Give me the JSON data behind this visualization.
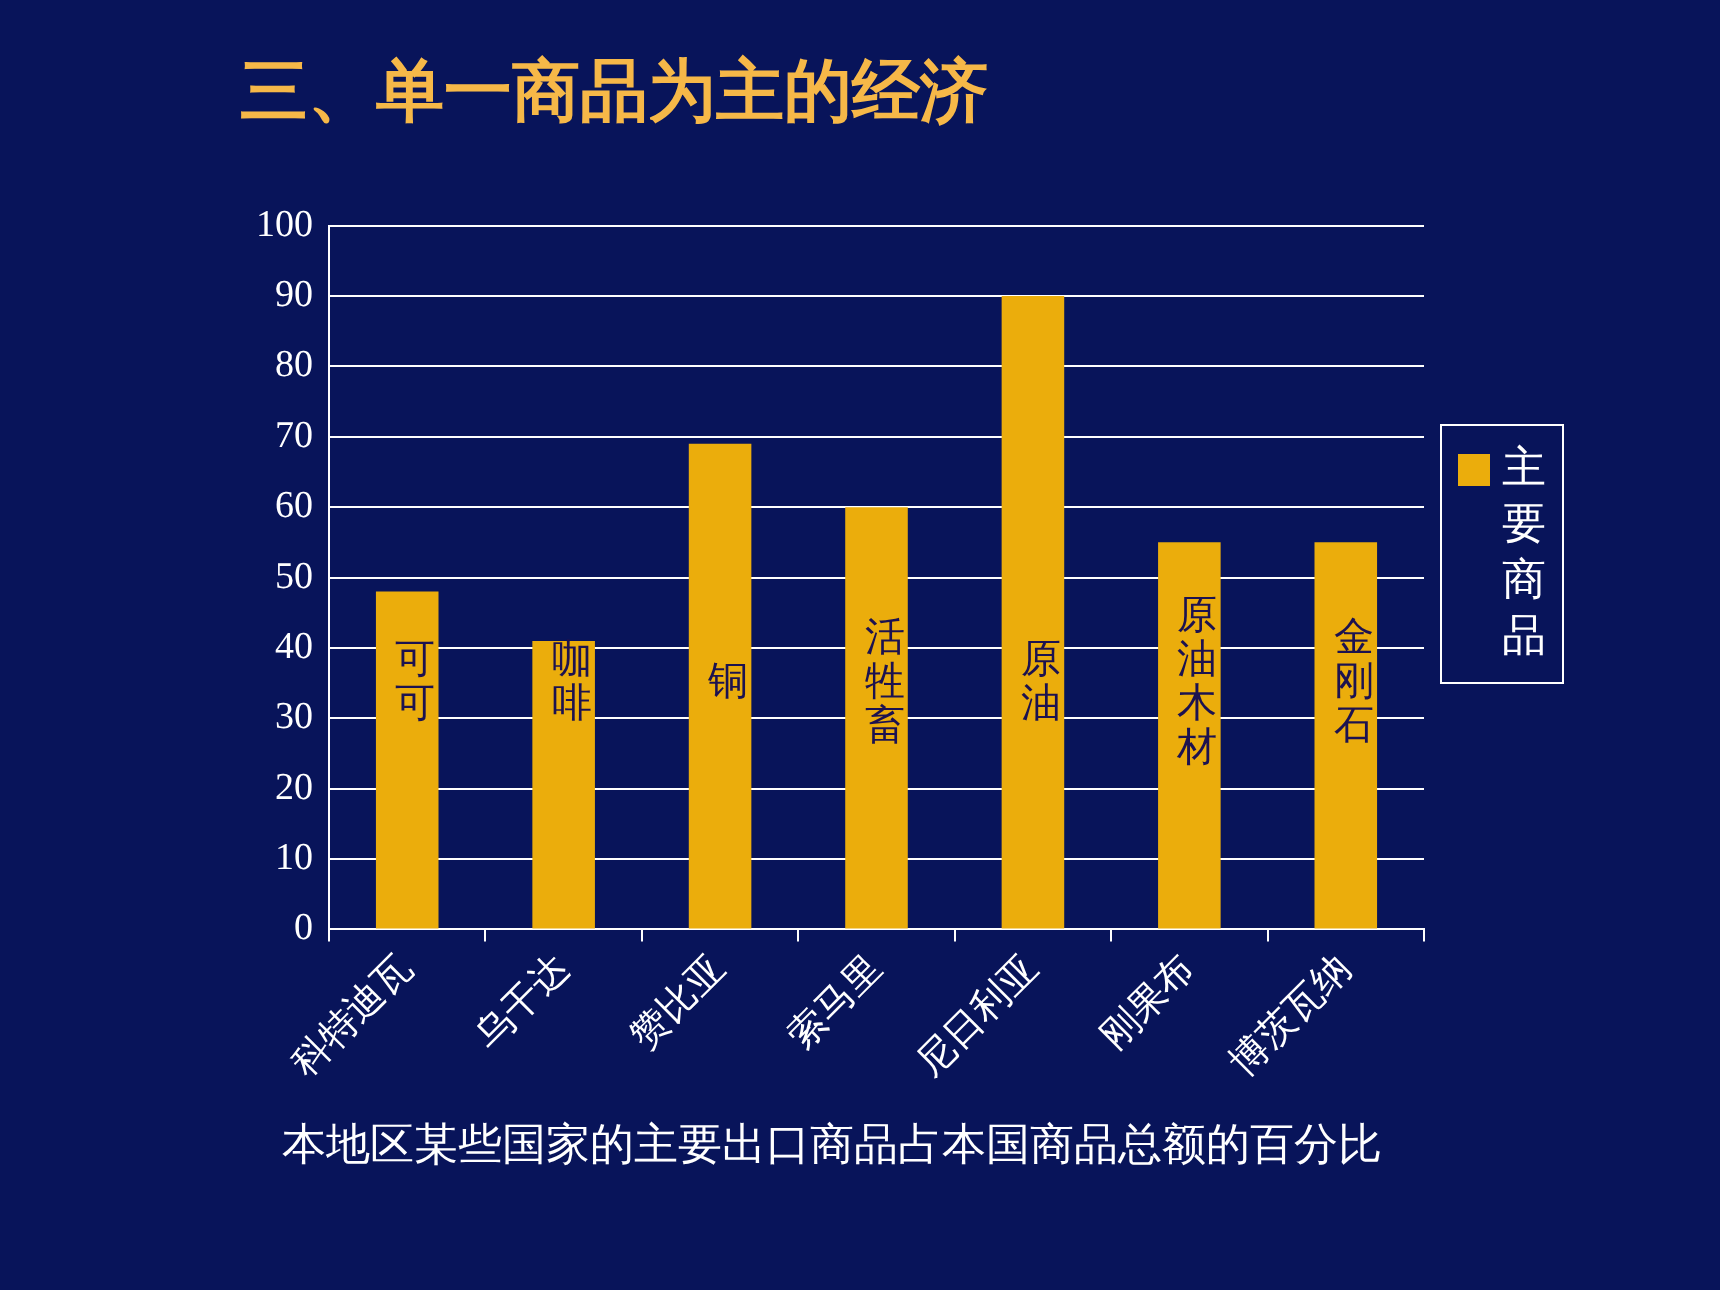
{
  "chart_data": {
    "type": "bar",
    "title": "三、单一商品为主的经济",
    "categories": [
      "科特迪瓦",
      "乌干达",
      "赞比亚",
      "索马里",
      "尼日利亚",
      "刚果布",
      "博茨瓦纳"
    ],
    "series": [
      {
        "name": "主要商品",
        "color": "#ebad0c",
        "values": [
          48,
          41,
          69,
          60,
          90,
          55,
          55
        ],
        "value_labels": [
          "可可",
          "咖啡",
          "铜",
          "活牲畜",
          "原油",
          "原油木材",
          "金刚石"
        ]
      }
    ],
    "ylim": [
      0,
      100
    ],
    "yticks": [
      0,
      10,
      20,
      30,
      40,
      50,
      60,
      70,
      80,
      90,
      100
    ],
    "grid": "y",
    "legend": "right",
    "annotations": [
      "本地区某些国家的主要出口商品占本国商品总额的百分比"
    ]
  }
}
